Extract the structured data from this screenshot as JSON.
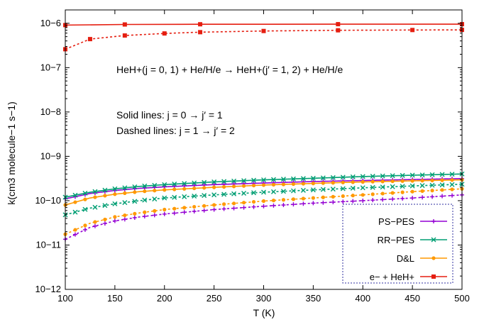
{
  "chart_data": {
    "type": "line",
    "xlabel": "T (K)",
    "ylabel": "k(cm3 molecule−1 s−1)",
    "xlim": [
      100,
      500
    ],
    "ylim": [
      1e-12,
      2e-06
    ],
    "yscale": "log",
    "x_ticks": [
      100,
      150,
      200,
      250,
      300,
      350,
      400,
      450,
      500
    ],
    "y_ticks": [
      {
        "value": 1e-12,
        "label": "10−12"
      },
      {
        "value": 1e-11,
        "label": "10−11"
      },
      {
        "value": 1e-10,
        "label": "10−10"
      },
      {
        "value": 1e-09,
        "label": "10−9"
      },
      {
        "value": 1e-08,
        "label": "10−8"
      },
      {
        "value": 1e-07,
        "label": "10−7"
      },
      {
        "value": 1e-06,
        "label": "10−6"
      }
    ],
    "grid": false,
    "legend_position": "bottom-right",
    "annotations": [
      "HeH+(j = 0, 1) + He/H/e → HeH+(j′ = 1, 2) + He/H/e",
      "Solid lines: j = 0 → j′ = 1",
      "Dashed lines: j = 1 → j′ = 2"
    ],
    "legend": [
      {
        "label": "PS−PES",
        "color": "#9400d3",
        "marker": "plus"
      },
      {
        "label": "RR−PES",
        "color": "#009e73",
        "marker": "cross"
      },
      {
        "label": "D&L",
        "color": "#ff9900",
        "marker": "circle"
      },
      {
        "label": "e− + HeH+",
        "color": "#e51e10",
        "marker": "square"
      }
    ],
    "series": [
      {
        "legend_index": 0,
        "dash": false,
        "marker_every": 10,
        "x": [
          100,
          125,
          150,
          175,
          200,
          250,
          300,
          350,
          400,
          450,
          500
        ],
        "y": [
          1.1e-10,
          1.45e-10,
          1.7e-10,
          1.9e-10,
          2.05e-10,
          2.3e-10,
          2.5e-10,
          2.7e-10,
          2.85e-10,
          3e-10,
          3.15e-10
        ]
      },
      {
        "legend_index": 0,
        "dash": true,
        "marker_every": 10,
        "x": [
          100,
          125,
          150,
          175,
          200,
          250,
          300,
          350,
          400,
          450,
          500
        ],
        "y": [
          1.35e-11,
          2.5e-11,
          3.5e-11,
          4.3e-11,
          5e-11,
          6.3e-11,
          7.5e-11,
          8.8e-11,
          1e-10,
          1.15e-10,
          1.35e-10
        ]
      },
      {
        "legend_index": 1,
        "dash": false,
        "marker_every": 10,
        "x": [
          100,
          125,
          150,
          175,
          200,
          250,
          300,
          350,
          400,
          450,
          500
        ],
        "y": [
          1.2e-10,
          1.55e-10,
          1.85e-10,
          2.1e-10,
          2.3e-10,
          2.65e-10,
          2.95e-10,
          3.2e-10,
          3.5e-10,
          3.75e-10,
          4e-10
        ]
      },
      {
        "legend_index": 1,
        "dash": true,
        "marker_every": 10,
        "x": [
          100,
          125,
          150,
          175,
          200,
          250,
          300,
          350,
          400,
          450,
          500
        ],
        "y": [
          4.8e-11,
          6.8e-11,
          8.5e-11,
          1e-10,
          1.15e-10,
          1.35e-10,
          1.55e-10,
          1.75e-10,
          1.95e-10,
          2.15e-10,
          2.35e-10
        ]
      },
      {
        "legend_index": 2,
        "dash": false,
        "marker_every": 10,
        "x": [
          100,
          125,
          150,
          175,
          200,
          250,
          300,
          350,
          400,
          450,
          500
        ],
        "y": [
          8e-11,
          1.15e-10,
          1.4e-10,
          1.6e-10,
          1.75e-10,
          2e-10,
          2.25e-10,
          2.45e-10,
          2.65e-10,
          2.8e-10,
          2.95e-10
        ]
      },
      {
        "legend_index": 2,
        "dash": true,
        "marker_every": 10,
        "x": [
          100,
          125,
          150,
          175,
          200,
          250,
          300,
          350,
          400,
          450,
          500
        ],
        "y": [
          1.75e-11,
          3.1e-11,
          4.3e-11,
          5.3e-11,
          6.3e-11,
          8e-11,
          9.8e-11,
          1.15e-10,
          1.35e-10,
          1.6e-10,
          1.85e-10
        ]
      },
      {
        "legend_index": 3,
        "dash": false,
        "marker_every": 1,
        "x": [
          100,
          160,
          236,
          375,
          500
        ],
        "y": [
          9.1e-07,
          9.4e-07,
          9.5e-07,
          9.55e-07,
          9.55e-07
        ]
      },
      {
        "legend_index": 3,
        "dash": true,
        "marker_every": 1,
        "x": [
          100,
          125,
          160,
          200,
          236,
          300,
          375,
          450,
          500
        ],
        "y": [
          2.6e-07,
          4.4e-07,
          5.3e-07,
          5.9e-07,
          6.3e-07,
          6.7e-07,
          6.95e-07,
          7.05e-07,
          7.1e-07
        ]
      }
    ]
  }
}
